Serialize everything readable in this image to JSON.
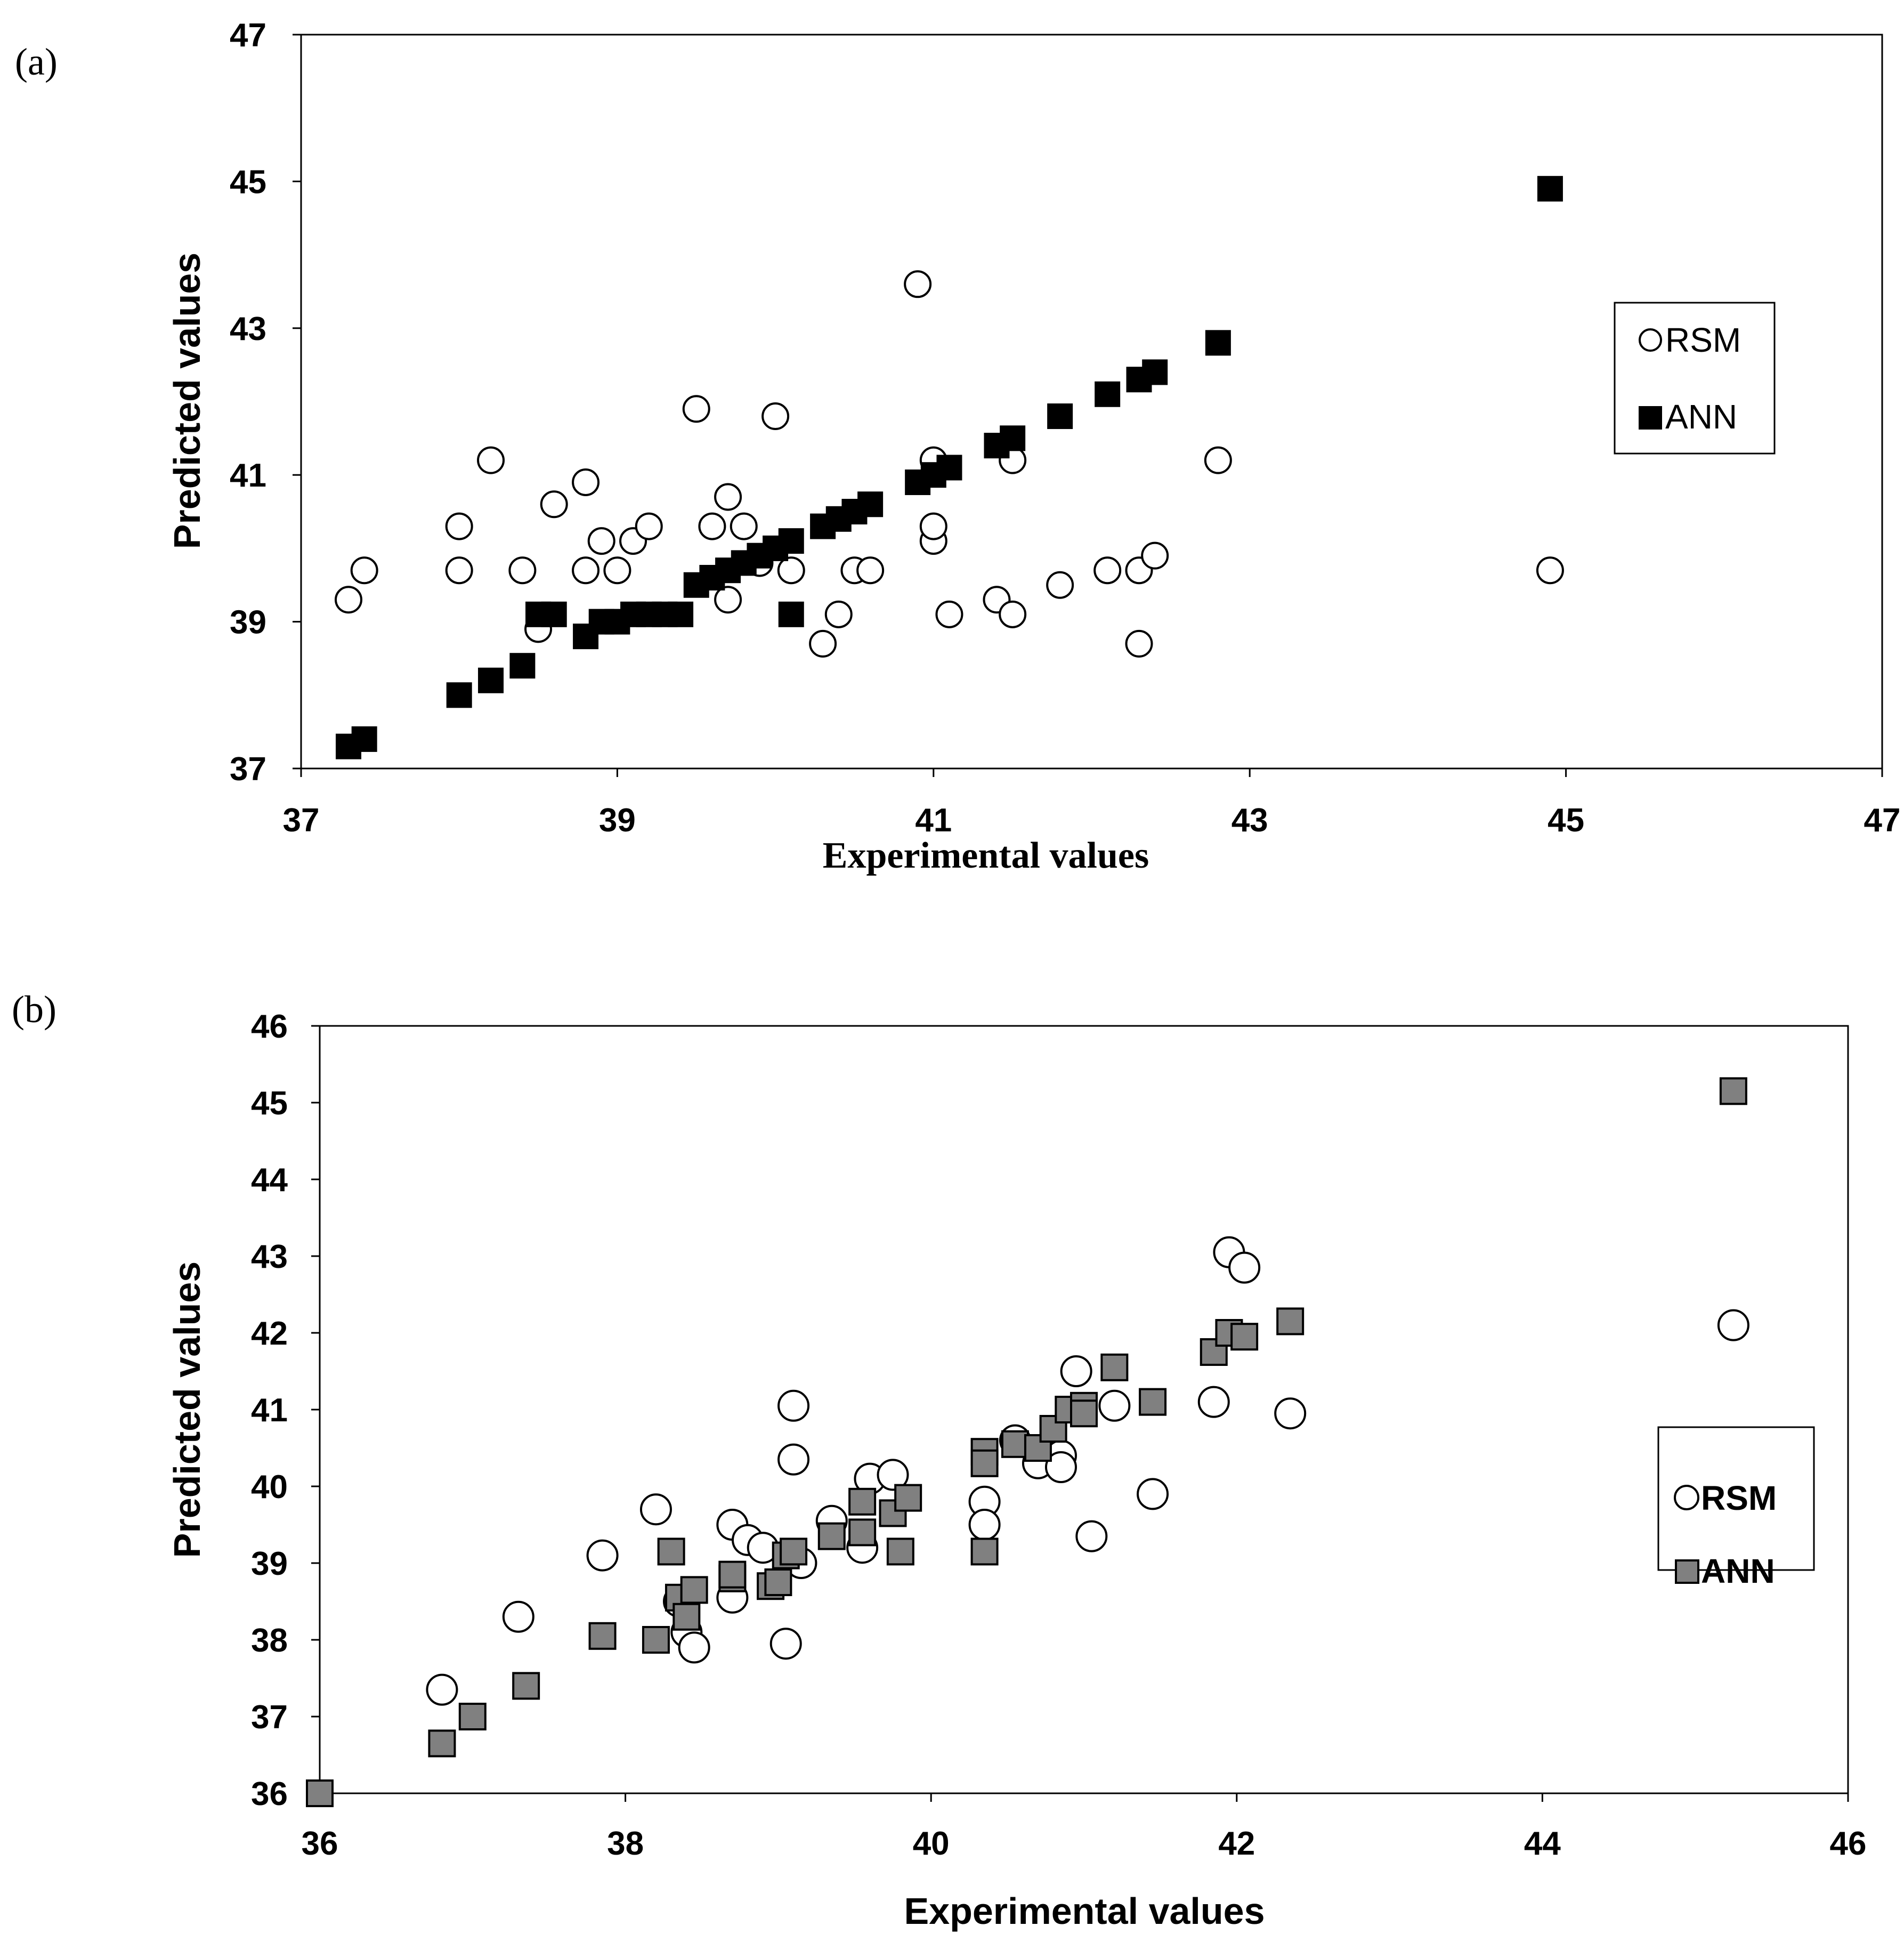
{
  "chart_data": [
    {
      "panel_label": "(a)",
      "type": "scatter",
      "xlabel": "Experimental values",
      "ylabel": "Predicted values",
      "xlim": [
        37,
        47
      ],
      "ylim": [
        37,
        47
      ],
      "xticks": [
        "37",
        "39",
        "41",
        "43",
        "45",
        "47"
      ],
      "yticks": [
        "37",
        "39",
        "41",
        "43",
        "45",
        "47"
      ],
      "legend_position": "right-middle",
      "series": [
        {
          "name": "RSM",
          "marker": "open-circle",
          "points": [
            [
              37.3,
              39.3
            ],
            [
              37.4,
              39.7
            ],
            [
              38.0,
              40.3
            ],
            [
              38.0,
              39.7
            ],
            [
              38.2,
              41.2
            ],
            [
              38.4,
              39.7
            ],
            [
              38.5,
              38.9
            ],
            [
              38.6,
              40.6
            ],
            [
              38.8,
              40.9
            ],
            [
              38.8,
              39.7
            ],
            [
              38.9,
              40.1
            ],
            [
              39.0,
              39.7
            ],
            [
              39.1,
              40.1
            ],
            [
              39.2,
              40.3
            ],
            [
              39.5,
              41.9
            ],
            [
              39.6,
              40.3
            ],
            [
              39.7,
              40.7
            ],
            [
              39.7,
              39.3
            ],
            [
              39.8,
              40.3
            ],
            [
              39.9,
              39.8
            ],
            [
              40.0,
              41.8
            ],
            [
              40.1,
              39.7
            ],
            [
              40.3,
              38.7
            ],
            [
              40.4,
              39.1
            ],
            [
              40.5,
              39.7
            ],
            [
              40.6,
              39.7
            ],
            [
              40.9,
              43.6
            ],
            [
              41.0,
              40.1
            ],
            [
              41.0,
              40.3
            ],
            [
              41.0,
              41.2
            ],
            [
              41.1,
              39.1
            ],
            [
              41.4,
              39.3
            ],
            [
              41.5,
              39.1
            ],
            [
              41.5,
              41.2
            ],
            [
              41.8,
              39.5
            ],
            [
              42.1,
              39.7
            ],
            [
              42.3,
              39.7
            ],
            [
              42.3,
              38.7
            ],
            [
              42.4,
              39.9
            ],
            [
              42.8,
              41.2
            ],
            [
              44.9,
              39.7
            ]
          ]
        },
        {
          "name": "ANN",
          "marker": "filled-square",
          "color": "#000000",
          "points": [
            [
              37.3,
              37.3
            ],
            [
              37.4,
              37.4
            ],
            [
              38.0,
              38.0
            ],
            [
              38.2,
              38.2
            ],
            [
              38.4,
              38.4
            ],
            [
              38.5,
              39.1
            ],
            [
              38.6,
              39.1
            ],
            [
              38.8,
              38.8
            ],
            [
              38.9,
              39.0
            ],
            [
              39.0,
              39.0
            ],
            [
              39.1,
              39.1
            ],
            [
              39.2,
              39.1
            ],
            [
              39.3,
              39.1
            ],
            [
              39.4,
              39.1
            ],
            [
              39.5,
              39.5
            ],
            [
              39.6,
              39.6
            ],
            [
              39.7,
              39.7
            ],
            [
              39.8,
              39.8
            ],
            [
              39.9,
              39.9
            ],
            [
              40.0,
              40.0
            ],
            [
              40.1,
              40.1
            ],
            [
              40.1,
              39.1
            ],
            [
              40.3,
              40.3
            ],
            [
              40.4,
              40.4
            ],
            [
              40.5,
              40.5
            ],
            [
              40.6,
              40.6
            ],
            [
              40.9,
              40.9
            ],
            [
              41.0,
              41.0
            ],
            [
              41.1,
              41.1
            ],
            [
              41.4,
              41.4
            ],
            [
              41.5,
              41.5
            ],
            [
              41.8,
              41.8
            ],
            [
              42.1,
              42.1
            ],
            [
              42.3,
              42.3
            ],
            [
              42.4,
              42.4
            ],
            [
              42.8,
              42.8
            ],
            [
              44.9,
              44.9
            ]
          ]
        }
      ]
    },
    {
      "panel_label": "(b)",
      "type": "scatter",
      "xlabel": "Experimental values",
      "ylabel": "Predicted values",
      "xlim": [
        36,
        46
      ],
      "ylim": [
        36,
        46
      ],
      "xticks": [
        "36",
        "38",
        "40",
        "42",
        "44",
        "46"
      ],
      "yticks": [
        "36",
        "37",
        "38",
        "39",
        "40",
        "41",
        "42",
        "43",
        "44",
        "45",
        "46"
      ],
      "legend_position": "right-lower",
      "series": [
        {
          "name": "RSM",
          "marker": "open-circle",
          "points": [
            [
              36.8,
              37.35
            ],
            [
              37.3,
              38.3
            ],
            [
              37.85,
              39.1
            ],
            [
              38.2,
              39.7
            ],
            [
              38.35,
              38.5
            ],
            [
              38.4,
              38.1
            ],
            [
              38.45,
              37.9
            ],
            [
              38.7,
              39.5
            ],
            [
              38.7,
              38.55
            ],
            [
              38.8,
              39.3
            ],
            [
              38.9,
              39.2
            ],
            [
              39.05,
              37.95
            ],
            [
              39.1,
              41.05
            ],
            [
              39.1,
              40.35
            ],
            [
              39.15,
              39.0
            ],
            [
              39.35,
              39.55
            ],
            [
              39.55,
              39.2
            ],
            [
              39.6,
              40.1
            ],
            [
              39.75,
              40.15
            ],
            [
              40.35,
              39.8
            ],
            [
              40.35,
              39.5
            ],
            [
              40.55,
              40.6
            ],
            [
              40.7,
              40.3
            ],
            [
              40.85,
              40.4
            ],
            [
              40.85,
              40.25
            ],
            [
              40.95,
              41.5
            ],
            [
              41.05,
              39.35
            ],
            [
              41.2,
              41.05
            ],
            [
              41.45,
              39.9
            ],
            [
              41.85,
              41.1
            ],
            [
              41.95,
              43.05
            ],
            [
              42.05,
              42.85
            ],
            [
              42.35,
              40.95
            ],
            [
              45.25,
              42.1
            ]
          ]
        },
        {
          "name": "ANN",
          "marker": "filled-square",
          "color": "#808080",
          "points": [
            [
              36.0,
              36.0
            ],
            [
              36.8,
              36.65
            ],
            [
              37.0,
              37.0
            ],
            [
              37.35,
              37.4
            ],
            [
              37.85,
              38.05
            ],
            [
              38.2,
              38.0
            ],
            [
              38.3,
              39.15
            ],
            [
              38.35,
              38.55
            ],
            [
              38.4,
              38.3
            ],
            [
              38.45,
              38.65
            ],
            [
              38.7,
              38.8
            ],
            [
              38.7,
              38.85
            ],
            [
              38.95,
              38.7
            ],
            [
              39.0,
              38.75
            ],
            [
              39.05,
              39.1
            ],
            [
              39.1,
              39.15
            ],
            [
              39.35,
              39.35
            ],
            [
              39.55,
              39.8
            ],
            [
              39.55,
              39.4
            ],
            [
              39.75,
              39.65
            ],
            [
              39.8,
              39.15
            ],
            [
              39.85,
              39.85
            ],
            [
              40.35,
              40.45
            ],
            [
              40.35,
              40.3
            ],
            [
              40.35,
              39.15
            ],
            [
              40.55,
              40.55
            ],
            [
              40.7,
              40.5
            ],
            [
              40.8,
              40.75
            ],
            [
              40.9,
              41.0
            ],
            [
              41.0,
              41.05
            ],
            [
              41.0,
              40.95
            ],
            [
              41.2,
              41.55
            ],
            [
              41.45,
              41.1
            ],
            [
              41.85,
              41.75
            ],
            [
              41.95,
              42.0
            ],
            [
              42.05,
              41.95
            ],
            [
              42.35,
              42.15
            ],
            [
              45.25,
              45.15
            ]
          ]
        }
      ]
    }
  ]
}
